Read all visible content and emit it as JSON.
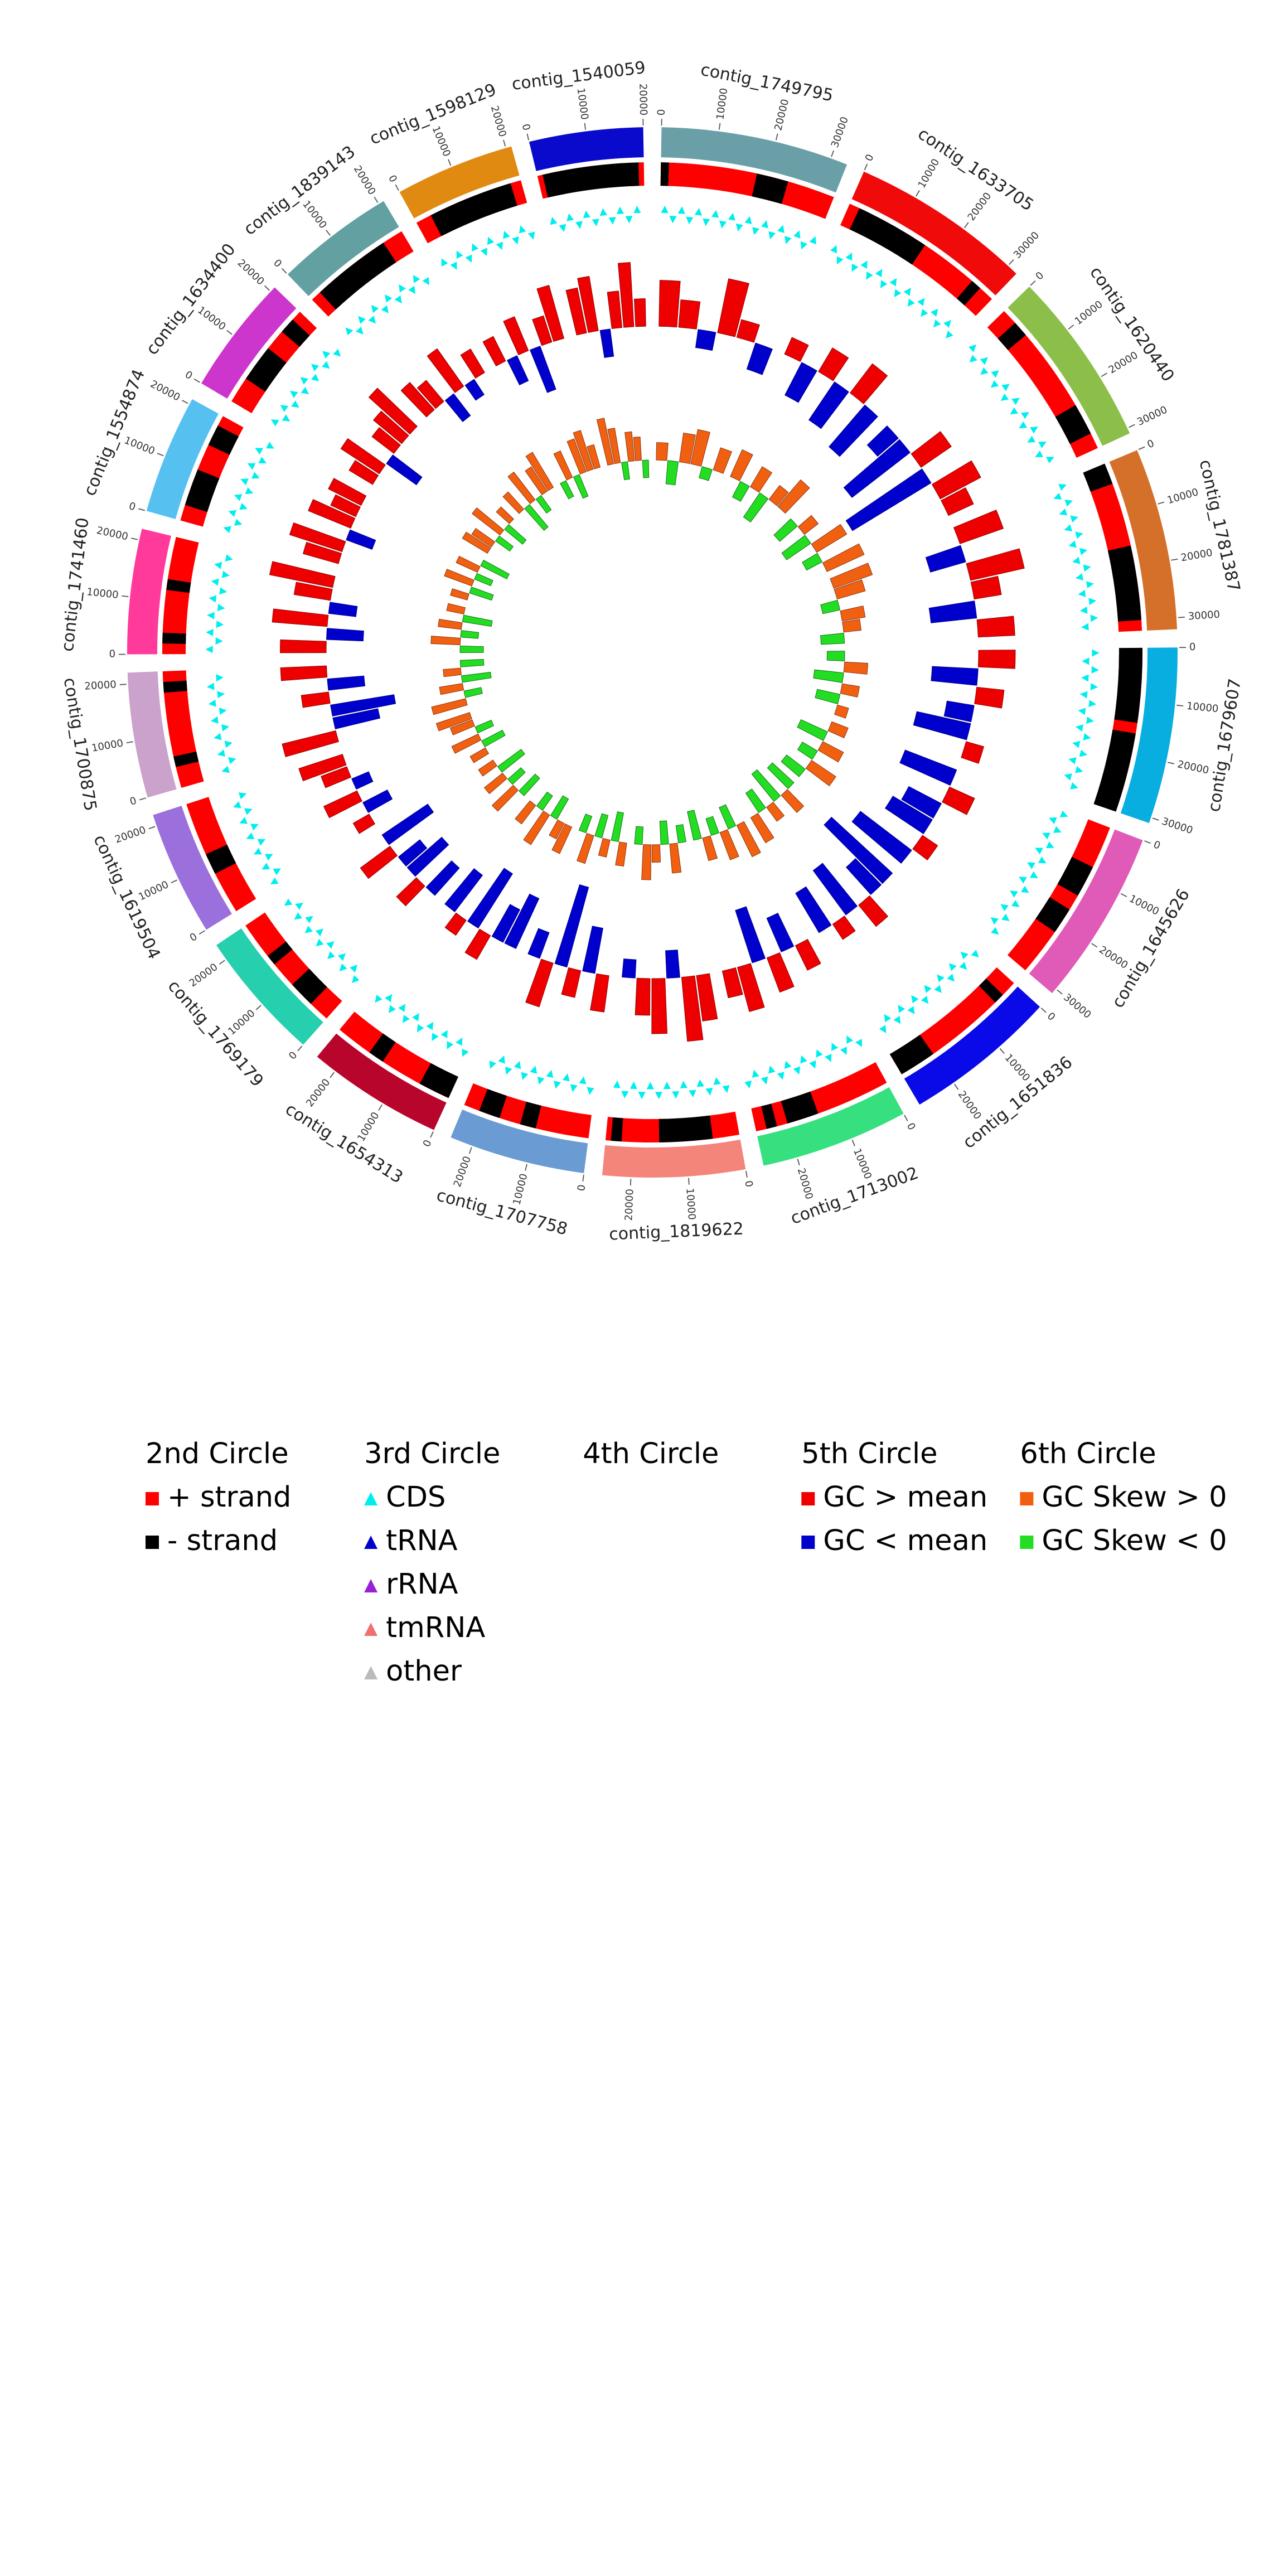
{
  "chart_data": {
    "type": "circos",
    "contigs": [
      {
        "name": "contig_1749795",
        "length": 33000,
        "color": "#6b9fa8",
        "ticks": [
          0,
          10000,
          20000,
          30000
        ],
        "minus": [
          [
            0,
            1500
          ],
          [
            18000,
            24000
          ]
        ],
        "gc": [
          0.5,
          0.3,
          -0.2,
          0.6,
          0.2,
          -0.3
        ],
        "skew": [
          0.3,
          -0.4,
          0.5,
          0.6,
          -0.2,
          0.4
        ]
      },
      {
        "name": "contig_1633705",
        "length": 32000,
        "color": "#f00a0a",
        "ticks": [
          0,
          10000,
          20000,
          30000
        ],
        "minus": [
          [
            2000,
            16000
          ],
          [
            27000,
            29000
          ]
        ],
        "gc": [
          0.2,
          -0.4,
          0.3,
          -0.5,
          0.4,
          -0.6
        ],
        "skew": [
          0.5,
          -0.3,
          0.4,
          -0.5,
          0.3,
          0.6
        ]
      },
      {
        "name": "contig_1620440",
        "length": 31000,
        "color": "#8cbf4a",
        "ticks": [
          0,
          10000,
          20000,
          30000
        ],
        "minus": [
          [
            3000,
            6000
          ],
          [
            22000,
            28000
          ]
        ],
        "gc": [
          -0.3,
          -0.8,
          0.4,
          -1.0,
          0.5,
          0.3
        ],
        "skew": [
          -0.4,
          0.3,
          -0.5,
          0.6,
          -0.3,
          0.7
        ]
      },
      {
        "name": "contig_1781387",
        "length": 32000,
        "color": "#d4702a",
        "ticks": [
          0,
          10000,
          20000,
          30000
        ],
        "minus": [
          [
            0,
            4000
          ],
          [
            16000,
            30000
          ]
        ],
        "gc": [
          0.5,
          -0.4,
          0.6,
          0.3,
          -0.5,
          0.4
        ],
        "skew": [
          0.7,
          0.5,
          -0.3,
          0.4,
          0.3,
          -0.4
        ]
      },
      {
        "name": "contig_1679607",
        "length": 31000,
        "color": "#08aee0",
        "ticks": [
          0,
          10000,
          20000,
          30000
        ],
        "minus": [
          [
            0,
            14000
          ],
          [
            16000,
            31000
          ]
        ],
        "gc": [
          0.4,
          -0.5,
          0.3,
          -0.3,
          -0.6,
          0.2
        ],
        "skew": [
          -0.3,
          0.4,
          -0.5,
          0.3,
          -0.4,
          0.2
        ]
      },
      {
        "name": "contig_1645626",
        "length": 31000,
        "color": "#e05ab8",
        "ticks": [
          0,
          10000,
          20000,
          30000
        ],
        "minus": [
          [
            8000,
            14000
          ],
          [
            17000,
            22000
          ]
        ],
        "gc": [
          -0.6,
          0.3,
          -0.4,
          -0.5,
          0.2,
          -0.7
        ],
        "skew": [
          0.3,
          -0.5,
          0.4,
          -0.3,
          0.5,
          -0.4
        ]
      },
      {
        "name": "contig_1651836",
        "length": 27000,
        "color": "#0a0ae8",
        "ticks": [
          0,
          10000,
          20000
        ],
        "minus": [
          [
            3000,
            5000
          ],
          [
            20000,
            27000
          ]
        ],
        "gc": [
          -0.9,
          -0.4,
          0.3,
          -0.6,
          0.2,
          -0.5
        ],
        "skew": [
          -0.5,
          0.4,
          -0.6,
          0.3,
          -0.4,
          0.5
        ]
      },
      {
        "name": "contig_1713002",
        "length": 26000,
        "color": "#36e07e",
        "ticks": [
          0,
          10000,
          20000
        ],
        "minus": [
          [
            14000,
            20000
          ],
          [
            22000,
            24000
          ]
        ],
        "gc": [
          0.3,
          -0.4,
          0.4,
          -0.6,
          0.5,
          0.3
        ],
        "skew": [
          0.6,
          -0.4,
          0.5,
          -0.3,
          0.4,
          -0.5
        ]
      },
      {
        "name": "contig_1819622",
        "length": 25000,
        "color": "#f4857a",
        "ticks": [
          0,
          10000,
          20000
        ],
        "minus": [
          [
            5000,
            15000
          ],
          [
            22000,
            24000
          ]
        ],
        "gc": [
          0.5,
          0.7,
          -0.3,
          0.6,
          0.4,
          -0.2
        ],
        "skew": [
          -0.3,
          0.5,
          -0.4,
          0.3,
          0.6,
          -0.3
        ]
      },
      {
        "name": "contig_1707758",
        "length": 24000,
        "color": "#6a9bd2",
        "ticks": [
          0,
          10000,
          20000
        ],
        "minus": [
          [
            10000,
            13000
          ],
          [
            17000,
            21000
          ]
        ],
        "gc": [
          0.4,
          -0.5,
          0.3,
          -0.9,
          0.5,
          -0.3
        ],
        "skew": [
          0.4,
          -0.5,
          0.3,
          -0.4,
          0.5,
          -0.3
        ]
      },
      {
        "name": "contig_1654313",
        "length": 24000,
        "color": "#b8052c",
        "ticks": [
          0,
          10000,
          20000
        ],
        "minus": [
          [
            0,
            6000
          ],
          [
            14000,
            17000
          ]
        ],
        "gc": [
          -0.6,
          -0.4,
          0.3,
          -0.7,
          0.2,
          -0.5
        ],
        "skew": [
          0.5,
          0.3,
          -0.4,
          0.6,
          -0.3,
          0.4
        ]
      },
      {
        "name": "contig_1769179",
        "length": 23000,
        "color": "#26cfae",
        "ticks": [
          0,
          10000,
          20000
        ],
        "minus": [
          [
            4000,
            9000
          ],
          [
            14000,
            16000
          ]
        ],
        "gc": [
          -0.4,
          0.3,
          -0.5,
          -0.3,
          0.4,
          -0.6
        ],
        "skew": [
          -0.4,
          0.5,
          -0.3,
          0.4,
          -0.5,
          0.3
        ]
      },
      {
        "name": "contig_1619504",
        "length": 22000,
        "color": "#9b6fdc",
        "ticks": [
          0,
          10000,
          20000
        ],
        "minus": [
          [
            8000,
            12000
          ]
        ],
        "gc": [
          0.2,
          -0.3,
          0.4,
          -0.2,
          0.3,
          0.5
        ],
        "skew": [
          0.3,
          -0.4,
          0.5,
          -0.3,
          0.4,
          0.6
        ]
      },
      {
        "name": "contig_1700875",
        "length": 22000,
        "color": "#caa2cc",
        "ticks": [
          0,
          10000,
          20000
        ],
        "minus": [
          [
            4000,
            6000
          ],
          [
            18000,
            20000
          ]
        ],
        "gc": [
          0.6,
          -0.5,
          -0.7,
          0.3,
          -0.4,
          0.5
        ],
        "skew": [
          0.6,
          -0.3,
          0.4,
          -0.5,
          0.3,
          -0.4
        ]
      },
      {
        "name": "contig_1741460",
        "length": 22000,
        "color": "#ff3a9a",
        "ticks": [
          0,
          10000,
          20000
        ],
        "minus": [
          [
            2000,
            4000
          ],
          [
            12000,
            14000
          ]
        ],
        "gc": [
          0.5,
          -0.4,
          0.6,
          -0.3,
          0.4,
          0.7
        ],
        "skew": [
          -0.4,
          0.5,
          -0.3,
          0.4,
          -0.5,
          0.3
        ]
      },
      {
        "name": "contig_1554874",
        "length": 21000,
        "color": "#56c0f0",
        "ticks": [
          0,
          10000,
          20000
        ],
        "minus": [
          [
            3000,
            10000
          ],
          [
            15000,
            19000
          ]
        ],
        "gc": [
          0.4,
          0.6,
          -0.3,
          0.5,
          0.3,
          0.4
        ],
        "skew": [
          0.3,
          -0.4,
          0.5,
          -0.3,
          0.4,
          -0.5
        ]
      },
      {
        "name": "contig_1634400",
        "length": 21000,
        "color": "#cc36cc",
        "ticks": [
          0,
          10000,
          20000
        ],
        "minus": [
          [
            5000,
            12000
          ],
          [
            16000,
            19000
          ]
        ],
        "gc": [
          0.3,
          0.5,
          -0.4,
          0.3,
          0.4,
          0.6
        ],
        "skew": [
          0.5,
          0.4,
          -0.3,
          0.6,
          -0.4,
          0.3
        ]
      },
      {
        "name": "contig_1839143",
        "length": 21000,
        "color": "#62a0a2",
        "ticks": [
          0,
          10000,
          20000
        ],
        "minus": [
          [
            2000,
            17000
          ]
        ],
        "gc": [
          0.4,
          0.3,
          -0.3,
          0.5,
          -0.2,
          0.3
        ],
        "skew": [
          0.4,
          -0.5,
          0.6,
          -0.3,
          0.5,
          0.7
        ]
      },
      {
        "name": "contig_1598129",
        "length": 21000,
        "color": "#e08a12",
        "ticks": [
          0,
          10000,
          20000
        ],
        "minus": [
          [
            3000,
            19000
          ]
        ],
        "gc": [
          0.3,
          -0.3,
          0.4,
          -0.5,
          0.3,
          0.6
        ],
        "skew": [
          -0.3,
          0.5,
          -0.4,
          0.6,
          0.7,
          0.4
        ]
      },
      {
        "name": "contig_1540059",
        "length": 20000,
        "color": "#0a0acc",
        "ticks": [
          0,
          10000,
          20000
        ],
        "minus": [
          [
            1000,
            19000
          ]
        ],
        "gc": [
          0.5,
          0.6,
          -0.3,
          0.4,
          0.7,
          0.3
        ],
        "skew": [
          0.8,
          0.6,
          -0.3,
          0.5,
          0.4,
          -0.3
        ]
      }
    ],
    "plus_strand_color": "#ff0000",
    "minus_strand_color": "#000000",
    "cds_color": "#00eeee",
    "gc_high_color": "#ee0000",
    "gc_low_color": "#0000cc",
    "skew_pos_color": "#f06010",
    "skew_neg_color": "#22dd22",
    "legend": [
      {
        "title": "2nd Circle",
        "items": [
          {
            "label": "+ strand",
            "color": "#ff0000",
            "marker": "square"
          },
          {
            "label": "- strand",
            "color": "#000000",
            "marker": "square"
          }
        ]
      },
      {
        "title": "3rd Circle",
        "items": [
          {
            "label": "CDS",
            "color": "#00eeee",
            "marker": "triangle"
          },
          {
            "label": "tRNA",
            "color": "#0000cc",
            "marker": "triangle"
          },
          {
            "label": "rRNA",
            "color": "#9a1fd6",
            "marker": "triangle"
          },
          {
            "label": "tmRNA",
            "color": "#f07070",
            "marker": "triangle"
          },
          {
            "label": "other",
            "color": "#bbbbbb",
            "marker": "triangle"
          }
        ]
      },
      {
        "title": "4th Circle",
        "items": []
      },
      {
        "title": "5th Circle",
        "items": [
          {
            "label": "GC > mean",
            "color": "#ee0000",
            "marker": "square"
          },
          {
            "label": "GC < mean",
            "color": "#0000cc",
            "marker": "square"
          }
        ]
      },
      {
        "title": "6th Circle",
        "items": [
          {
            "label": "GC Skew > 0",
            "color": "#f06010",
            "marker": "square"
          },
          {
            "label": "GC Skew < 0",
            "color": "#22dd22",
            "marker": "square"
          }
        ]
      }
    ]
  }
}
